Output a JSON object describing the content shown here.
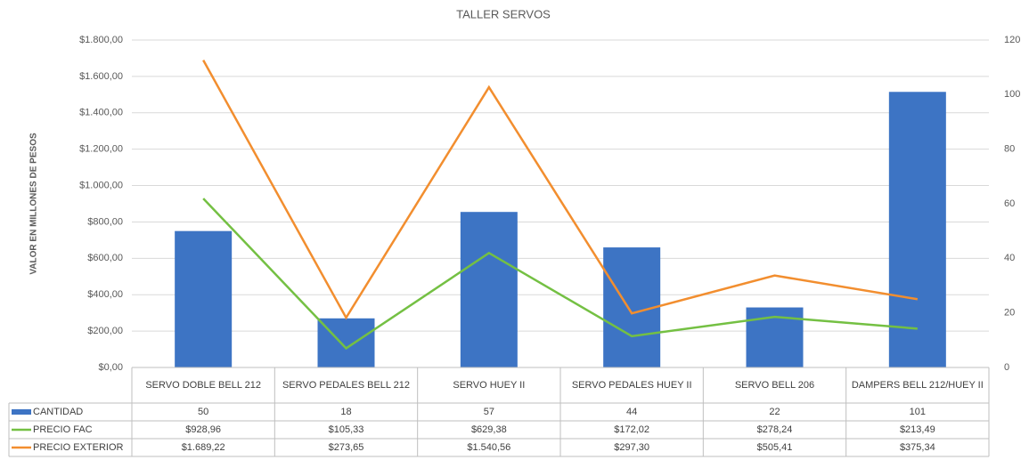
{
  "chart_data": {
    "type": "bar_line_table",
    "title": "TALLER SERVOS",
    "y_label": "VALOR EN MILLONES DE PESOS",
    "categories": [
      "SERVO DOBLE BELL 212",
      "SERVO PEDALES BELL 212",
      "SERVO HUEY II",
      "SERVO PEDALES HUEY II",
      "SERVO BELL 206",
      "DAMPERS BELL 212/HUEY II"
    ],
    "series": [
      {
        "name": "CANTIDAD",
        "type": "bar",
        "axis": "y2",
        "color": "#3d74c4",
        "values": [
          50,
          18,
          57,
          44,
          22,
          101
        ]
      },
      {
        "name": "PRECIO FAC",
        "type": "line",
        "color": "#74c043",
        "values": [
          928.96,
          105.33,
          629.38,
          172.02,
          278.24,
          213.49
        ],
        "value_labels": [
          "$928,96",
          "$105,33",
          "$629,38",
          "$172,02",
          "$278,24",
          "$213,49"
        ]
      },
      {
        "name": "PRECIO EXTERIOR",
        "type": "line",
        "color": "#f28e2f",
        "values": [
          1689.22,
          273.65,
          1540.56,
          297.3,
          505.41,
          375.34
        ],
        "value_labels": [
          "$1.689,22",
          "$273,65",
          "$1.540,56",
          "$297,30",
          "$505,41",
          "$375,34"
        ]
      }
    ],
    "ylim": [
      0,
      1800
    ],
    "yticks": [
      {
        "value": 0,
        "label": "$0,00"
      },
      {
        "value": 200,
        "label": "$200,00"
      },
      {
        "value": 400,
        "label": "$400,00"
      },
      {
        "value": 600,
        "label": "$600,00"
      },
      {
        "value": 800,
        "label": "$800,00"
      },
      {
        "value": 1000,
        "label": "$1.000,00"
      },
      {
        "value": 1200,
        "label": "$1.200,00"
      },
      {
        "value": 1400,
        "label": "$1.400,00"
      },
      {
        "value": 1600,
        "label": "$1.600,00"
      },
      {
        "value": 1800,
        "label": "$1.800,00"
      }
    ],
    "y2lim": [
      0,
      120
    ],
    "y2ticks": [
      0,
      20,
      40,
      60,
      80,
      100,
      120
    ],
    "grid": true
  }
}
